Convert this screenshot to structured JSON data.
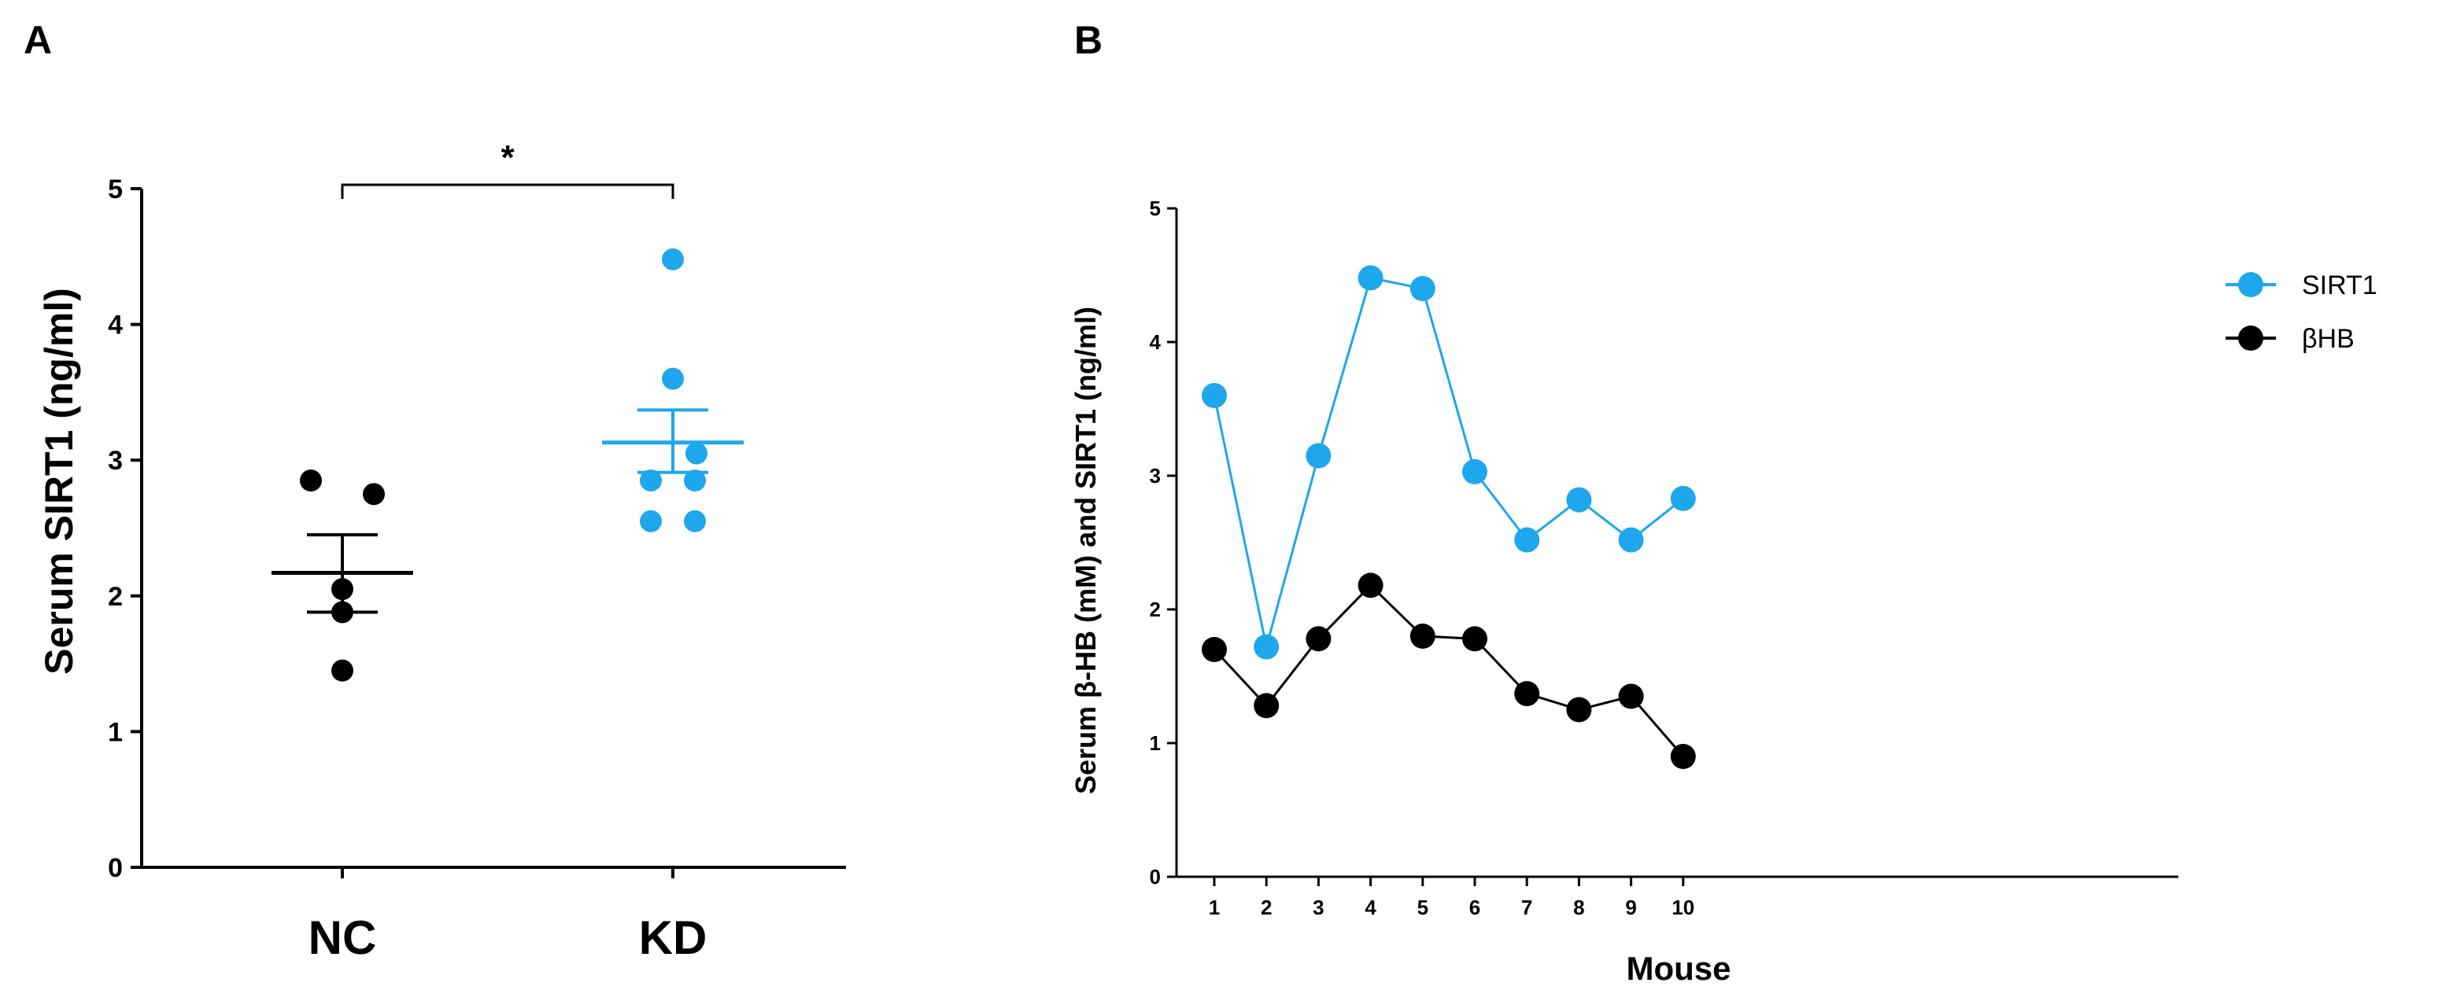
{
  "chart_data": [
    {
      "panel": "A",
      "type": "scatter",
      "ylabel": "Serum SIRT1 (ng/ml)",
      "ylim": [
        0,
        5
      ],
      "yticks": [
        0,
        1,
        2,
        3,
        4,
        5
      ],
      "categories": [
        "NC",
        "KD"
      ],
      "groups": [
        {
          "name": "NC",
          "color": "#000000",
          "values": [
            2.85,
            2.75,
            2.05,
            1.88,
            1.45
          ],
          "mean": 2.17,
          "sem_low": 1.88,
          "sem_high": 2.45
        },
        {
          "name": "KD",
          "color": "#1ea7ec",
          "values": [
            4.48,
            3.6,
            3.05,
            2.85,
            2.85,
            2.55,
            2.55
          ],
          "mean": 3.13,
          "sem_low": 2.91,
          "sem_high": 3.37
        }
      ],
      "annotation": {
        "text": "*",
        "between": [
          "NC",
          "KD"
        ],
        "at_value": 5.0
      }
    },
    {
      "panel": "B",
      "type": "line",
      "xlabel": "Mouse",
      "ylabel": "Serum β-HB (mM) and SIRT1 (ng/ml)",
      "ylim": [
        0,
        5
      ],
      "yticks": [
        0,
        1,
        2,
        3,
        4,
        5
      ],
      "x": [
        1,
        2,
        3,
        4,
        5,
        6,
        7,
        8,
        9,
        10
      ],
      "series": [
        {
          "name": "SIRT1",
          "color": "#1ea7ec",
          "values": [
            3.6,
            1.72,
            3.15,
            4.48,
            4.4,
            3.03,
            2.52,
            2.82,
            2.52,
            2.83
          ]
        },
        {
          "name": "βHB",
          "color": "#000000",
          "values": [
            1.7,
            1.28,
            1.78,
            2.18,
            1.8,
            1.78,
            1.37,
            1.25,
            1.35,
            0.9
          ]
        }
      ],
      "legend": "right"
    }
  ]
}
